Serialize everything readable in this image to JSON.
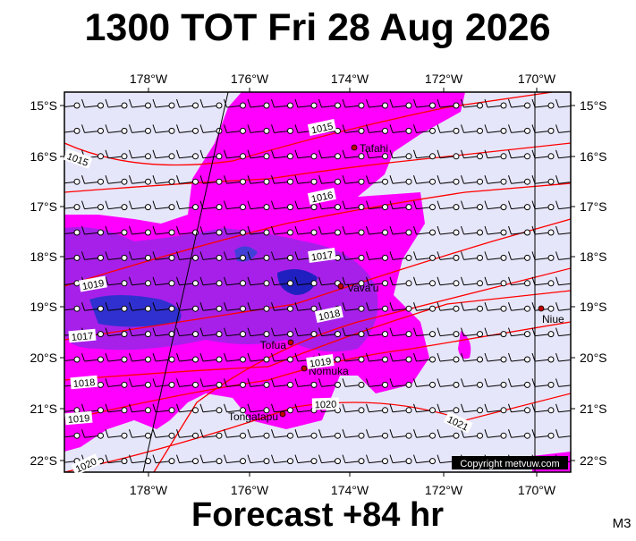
{
  "header": {
    "title": "1300 TOT Fri 28 Aug 2026"
  },
  "footer": {
    "forecast": "Forecast +84 hr",
    "model": "M3"
  },
  "map": {
    "lon_labels": [
      "178°W",
      "176°W",
      "174°W",
      "172°W",
      "170°W"
    ],
    "lat_labels": [
      "15°S",
      "16°S",
      "17°S",
      "18°S",
      "19°S",
      "20°S",
      "21°S",
      "22°S"
    ],
    "places": [
      "Tafahi",
      "Vava'u",
      "Niue",
      "Tofua",
      "Nomuka",
      "Tongatapu"
    ],
    "isobar_labels": [
      "1015",
      "1015",
      "1016",
      "1017",
      "1019",
      "1018",
      "1017",
      "1019",
      "1018",
      "1020",
      "1019",
      "1021",
      "1020"
    ],
    "copyright": "Copyright metvuw.com"
  }
}
